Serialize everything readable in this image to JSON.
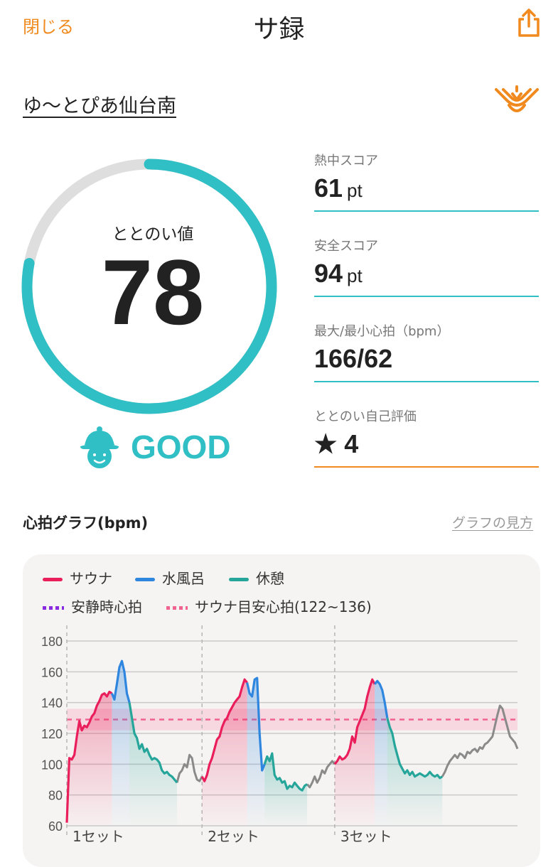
{
  "header": {
    "close_label": "閉じる",
    "title": "サ録",
    "share_icon": "share-icon"
  },
  "facility": {
    "name": "ゆ〜とぴあ仙台南",
    "logo_icon": "sauna-logo-icon"
  },
  "totonoi": {
    "label": "ととのい値",
    "value": 78,
    "value_fraction": 0.78,
    "rating": "GOOD",
    "rating_icon": "sauna-hat-face-icon"
  },
  "stats": [
    {
      "label": "熱中スコア",
      "value": "61",
      "unit": "pt"
    },
    {
      "label": "安全スコア",
      "value": "94",
      "unit": "pt"
    },
    {
      "label": "最大/最小心拍（bpm）",
      "value": "166/62",
      "unit": ""
    },
    {
      "label": "ととのい自己評価",
      "value": "★ 4",
      "unit": ""
    }
  ],
  "graph": {
    "title": "心拍グラフ(bpm)",
    "howto_link": "グラフの見方"
  },
  "colors": {
    "accent_orange": "#f08a1e",
    "teal": "#2fbfc4",
    "sauna": "#e91e5a",
    "cold_bath": "#2e86de",
    "rest": "#26a69a",
    "resting_hr": "#8a2be2",
    "target_hr": "#f06292"
  },
  "chart_data": {
    "type": "line",
    "legend": [
      {
        "name": "サウナ",
        "style": "solid",
        "color": "#e91e5a"
      },
      {
        "name": "水風呂",
        "style": "solid",
        "color": "#2e86de"
      },
      {
        "name": "休憩",
        "style": "solid",
        "color": "#26a69a"
      },
      {
        "name": "安静時心拍",
        "style": "dotted",
        "color": "#8a2be2"
      },
      {
        "name": "サウナ目安心拍(122~136)",
        "style": "dashed",
        "color": "#f06292"
      }
    ],
    "ylim": [
      60,
      180
    ],
    "yticks": [
      60,
      80,
      100,
      120,
      140,
      160,
      180
    ],
    "target_band": [
      122,
      136
    ],
    "target_line": 129,
    "xlabels": [
      "1セット",
      "2セット",
      "3セット"
    ],
    "sets": [
      {
        "sauna": [
          [
            0,
            62
          ],
          [
            1,
            104
          ],
          [
            2,
            103
          ],
          [
            3,
            106
          ],
          [
            4,
            118
          ],
          [
            5,
            128
          ],
          [
            6,
            122
          ],
          [
            7,
            125
          ],
          [
            8,
            124
          ],
          [
            9,
            127
          ],
          [
            10,
            131
          ],
          [
            11,
            133
          ],
          [
            12,
            138
          ],
          [
            13,
            141
          ],
          [
            14,
            145
          ],
          [
            15,
            146
          ],
          [
            16,
            144
          ],
          [
            17,
            147
          ],
          [
            18,
            146
          ]
        ],
        "cold": [
          [
            18,
            146
          ],
          [
            19,
            142
          ],
          [
            20,
            152
          ],
          [
            21,
            163
          ],
          [
            22,
            167
          ],
          [
            23,
            160
          ],
          [
            24,
            146
          ],
          [
            25,
            140
          ]
        ],
        "rest": [
          [
            25,
            140
          ],
          [
            26,
            130
          ],
          [
            27,
            120
          ],
          [
            28,
            117
          ],
          [
            29,
            110
          ],
          [
            30,
            113
          ],
          [
            31,
            108
          ],
          [
            32,
            110
          ],
          [
            33,
            106
          ],
          [
            34,
            103
          ],
          [
            35,
            104
          ],
          [
            36,
            103
          ],
          [
            37,
            101
          ],
          [
            38,
            96
          ],
          [
            39,
            94
          ],
          [
            40,
            95
          ],
          [
            41,
            93
          ],
          [
            42,
            92
          ],
          [
            43,
            90
          ],
          [
            44,
            88
          ]
        ]
      },
      {
        "sauna": [
          [
            54,
            92
          ],
          [
            55,
            89
          ],
          [
            56,
            93
          ],
          [
            57,
            100
          ],
          [
            58,
            104
          ],
          [
            59,
            110
          ],
          [
            60,
            116
          ],
          [
            61,
            118
          ],
          [
            62,
            124
          ],
          [
            63,
            128
          ],
          [
            64,
            130
          ],
          [
            65,
            134
          ],
          [
            66,
            137
          ],
          [
            67,
            140
          ],
          [
            68,
            142
          ],
          [
            69,
            144
          ],
          [
            70,
            150
          ],
          [
            71,
            155
          ],
          [
            72,
            153
          ]
        ],
        "cold": [
          [
            72,
            153
          ],
          [
            73,
            146
          ],
          [
            74,
            144
          ],
          [
            75,
            155
          ],
          [
            76,
            156
          ],
          [
            77,
            120
          ],
          [
            78,
            96
          ],
          [
            79,
            100
          ]
        ],
        "rest": [
          [
            79,
            100
          ],
          [
            80,
            105
          ],
          [
            81,
            102
          ],
          [
            82,
            107
          ],
          [
            83,
            93
          ],
          [
            84,
            90
          ],
          [
            85,
            91
          ],
          [
            86,
            88
          ],
          [
            87,
            89
          ],
          [
            88,
            84
          ],
          [
            89,
            86
          ],
          [
            90,
            85
          ],
          [
            91,
            88
          ],
          [
            92,
            86
          ],
          [
            93,
            84
          ],
          [
            94,
            83
          ],
          [
            95,
            86
          ],
          [
            96,
            87
          ]
        ]
      },
      {
        "sauna": [
          [
            107,
            100
          ],
          [
            108,
            102
          ],
          [
            109,
            105
          ],
          [
            110,
            103
          ],
          [
            111,
            104
          ],
          [
            112,
            106
          ],
          [
            113,
            110
          ],
          [
            114,
            118
          ],
          [
            115,
            114
          ],
          [
            116,
            124
          ],
          [
            117,
            128
          ],
          [
            118,
            132
          ],
          [
            119,
            136
          ],
          [
            120,
            144
          ],
          [
            121,
            150
          ],
          [
            122,
            155
          ],
          [
            123,
            152
          ]
        ],
        "cold": [
          [
            123,
            152
          ],
          [
            124,
            154
          ],
          [
            125,
            152
          ],
          [
            126,
            148
          ],
          [
            127,
            140
          ],
          [
            128,
            130
          ]
        ],
        "rest": [
          [
            128,
            130
          ],
          [
            129,
            124
          ],
          [
            130,
            120
          ],
          [
            131,
            112
          ],
          [
            132,
            106
          ],
          [
            133,
            100
          ],
          [
            134,
            97
          ],
          [
            135,
            94
          ],
          [
            136,
            96
          ],
          [
            137,
            93
          ],
          [
            138,
            95
          ],
          [
            139,
            92
          ],
          [
            140,
            93
          ],
          [
            141,
            94
          ],
          [
            142,
            93
          ],
          [
            143,
            92
          ],
          [
            144,
            93
          ],
          [
            145,
            95
          ],
          [
            146,
            93
          ],
          [
            147,
            92
          ],
          [
            148,
            93
          ],
          [
            149,
            91
          ],
          [
            150,
            92
          ]
        ]
      }
    ],
    "other": [
      [
        [
          44,
          88
        ],
        [
          45,
          94
        ],
        [
          46,
          96
        ],
        [
          47,
          100
        ],
        [
          48,
          98
        ],
        [
          49,
          106
        ],
        [
          50,
          104
        ],
        [
          51,
          95
        ],
        [
          52,
          90
        ],
        [
          53,
          89
        ],
        [
          54,
          92
        ]
      ],
      [
        [
          96,
          87
        ],
        [
          97,
          85
        ],
        [
          98,
          88
        ],
        [
          99,
          92
        ],
        [
          100,
          88
        ],
        [
          101,
          91
        ],
        [
          102,
          96
        ],
        [
          103,
          94
        ],
        [
          104,
          98
        ],
        [
          105,
          100
        ],
        [
          106,
          102
        ],
        [
          107,
          100
        ]
      ],
      [
        [
          150,
          92
        ],
        [
          151,
          95
        ],
        [
          152,
          99
        ],
        [
          153,
          102
        ],
        [
          154,
          104
        ],
        [
          155,
          106
        ],
        [
          156,
          104
        ],
        [
          157,
          107
        ],
        [
          158,
          106
        ],
        [
          159,
          104
        ],
        [
          160,
          108
        ],
        [
          161,
          107
        ],
        [
          162,
          109
        ],
        [
          163,
          110
        ],
        [
          164,
          108
        ],
        [
          165,
          111
        ],
        [
          166,
          110
        ],
        [
          167,
          113
        ],
        [
          168,
          114
        ],
        [
          169,
          116
        ],
        [
          170,
          118
        ],
        [
          171,
          125
        ],
        [
          172,
          132
        ],
        [
          173,
          138
        ],
        [
          174,
          136
        ],
        [
          175,
          130
        ],
        [
          176,
          124
        ],
        [
          177,
          118
        ],
        [
          178,
          116
        ],
        [
          179,
          114
        ],
        [
          180,
          110
        ]
      ]
    ]
  }
}
